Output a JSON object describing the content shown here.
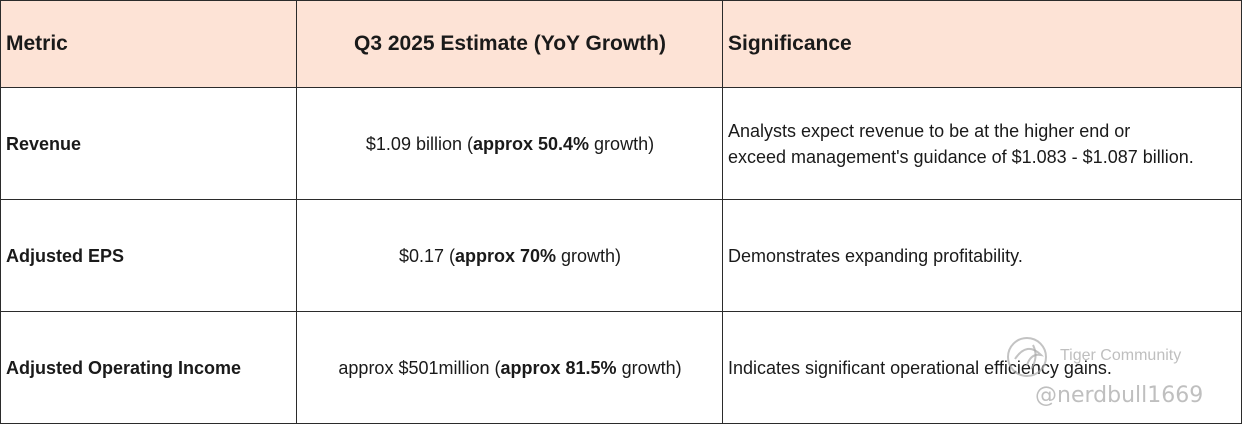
{
  "table": {
    "headers": [
      "Metric",
      "Q3 2025 Estimate (YoY Growth)",
      "Significance"
    ],
    "rows": [
      {
        "metric": "Revenue",
        "estimate_pre": "$1.09 billion (",
        "estimate_bold": "approx 50.4%",
        "estimate_post": " growth)",
        "significance_line1": "Analysts expect revenue to be at the higher end or",
        "significance_line2": "exceed management's guidance of $1.083 - $1.087 billion."
      },
      {
        "metric": "Adjusted EPS",
        "estimate_pre": "$0.17 (",
        "estimate_bold": "approx 70%",
        "estimate_post": " growth)",
        "significance_line1": "Demonstrates expanding profitability."
      },
      {
        "metric": "Adjusted Operating Income",
        "estimate_pre": "approx $501million (",
        "estimate_bold": "approx 81.5%",
        "estimate_post": " growth)",
        "significance_line1": "Indicates significant operational efficiency gains."
      }
    ]
  },
  "watermark": {
    "brand": "Tiger Community",
    "handle": "@nerdbull1669",
    "icon": "tiger-community-logo-icon"
  },
  "colors": {
    "header_bg": "#fde3d6",
    "border": "#2b2b2b"
  }
}
